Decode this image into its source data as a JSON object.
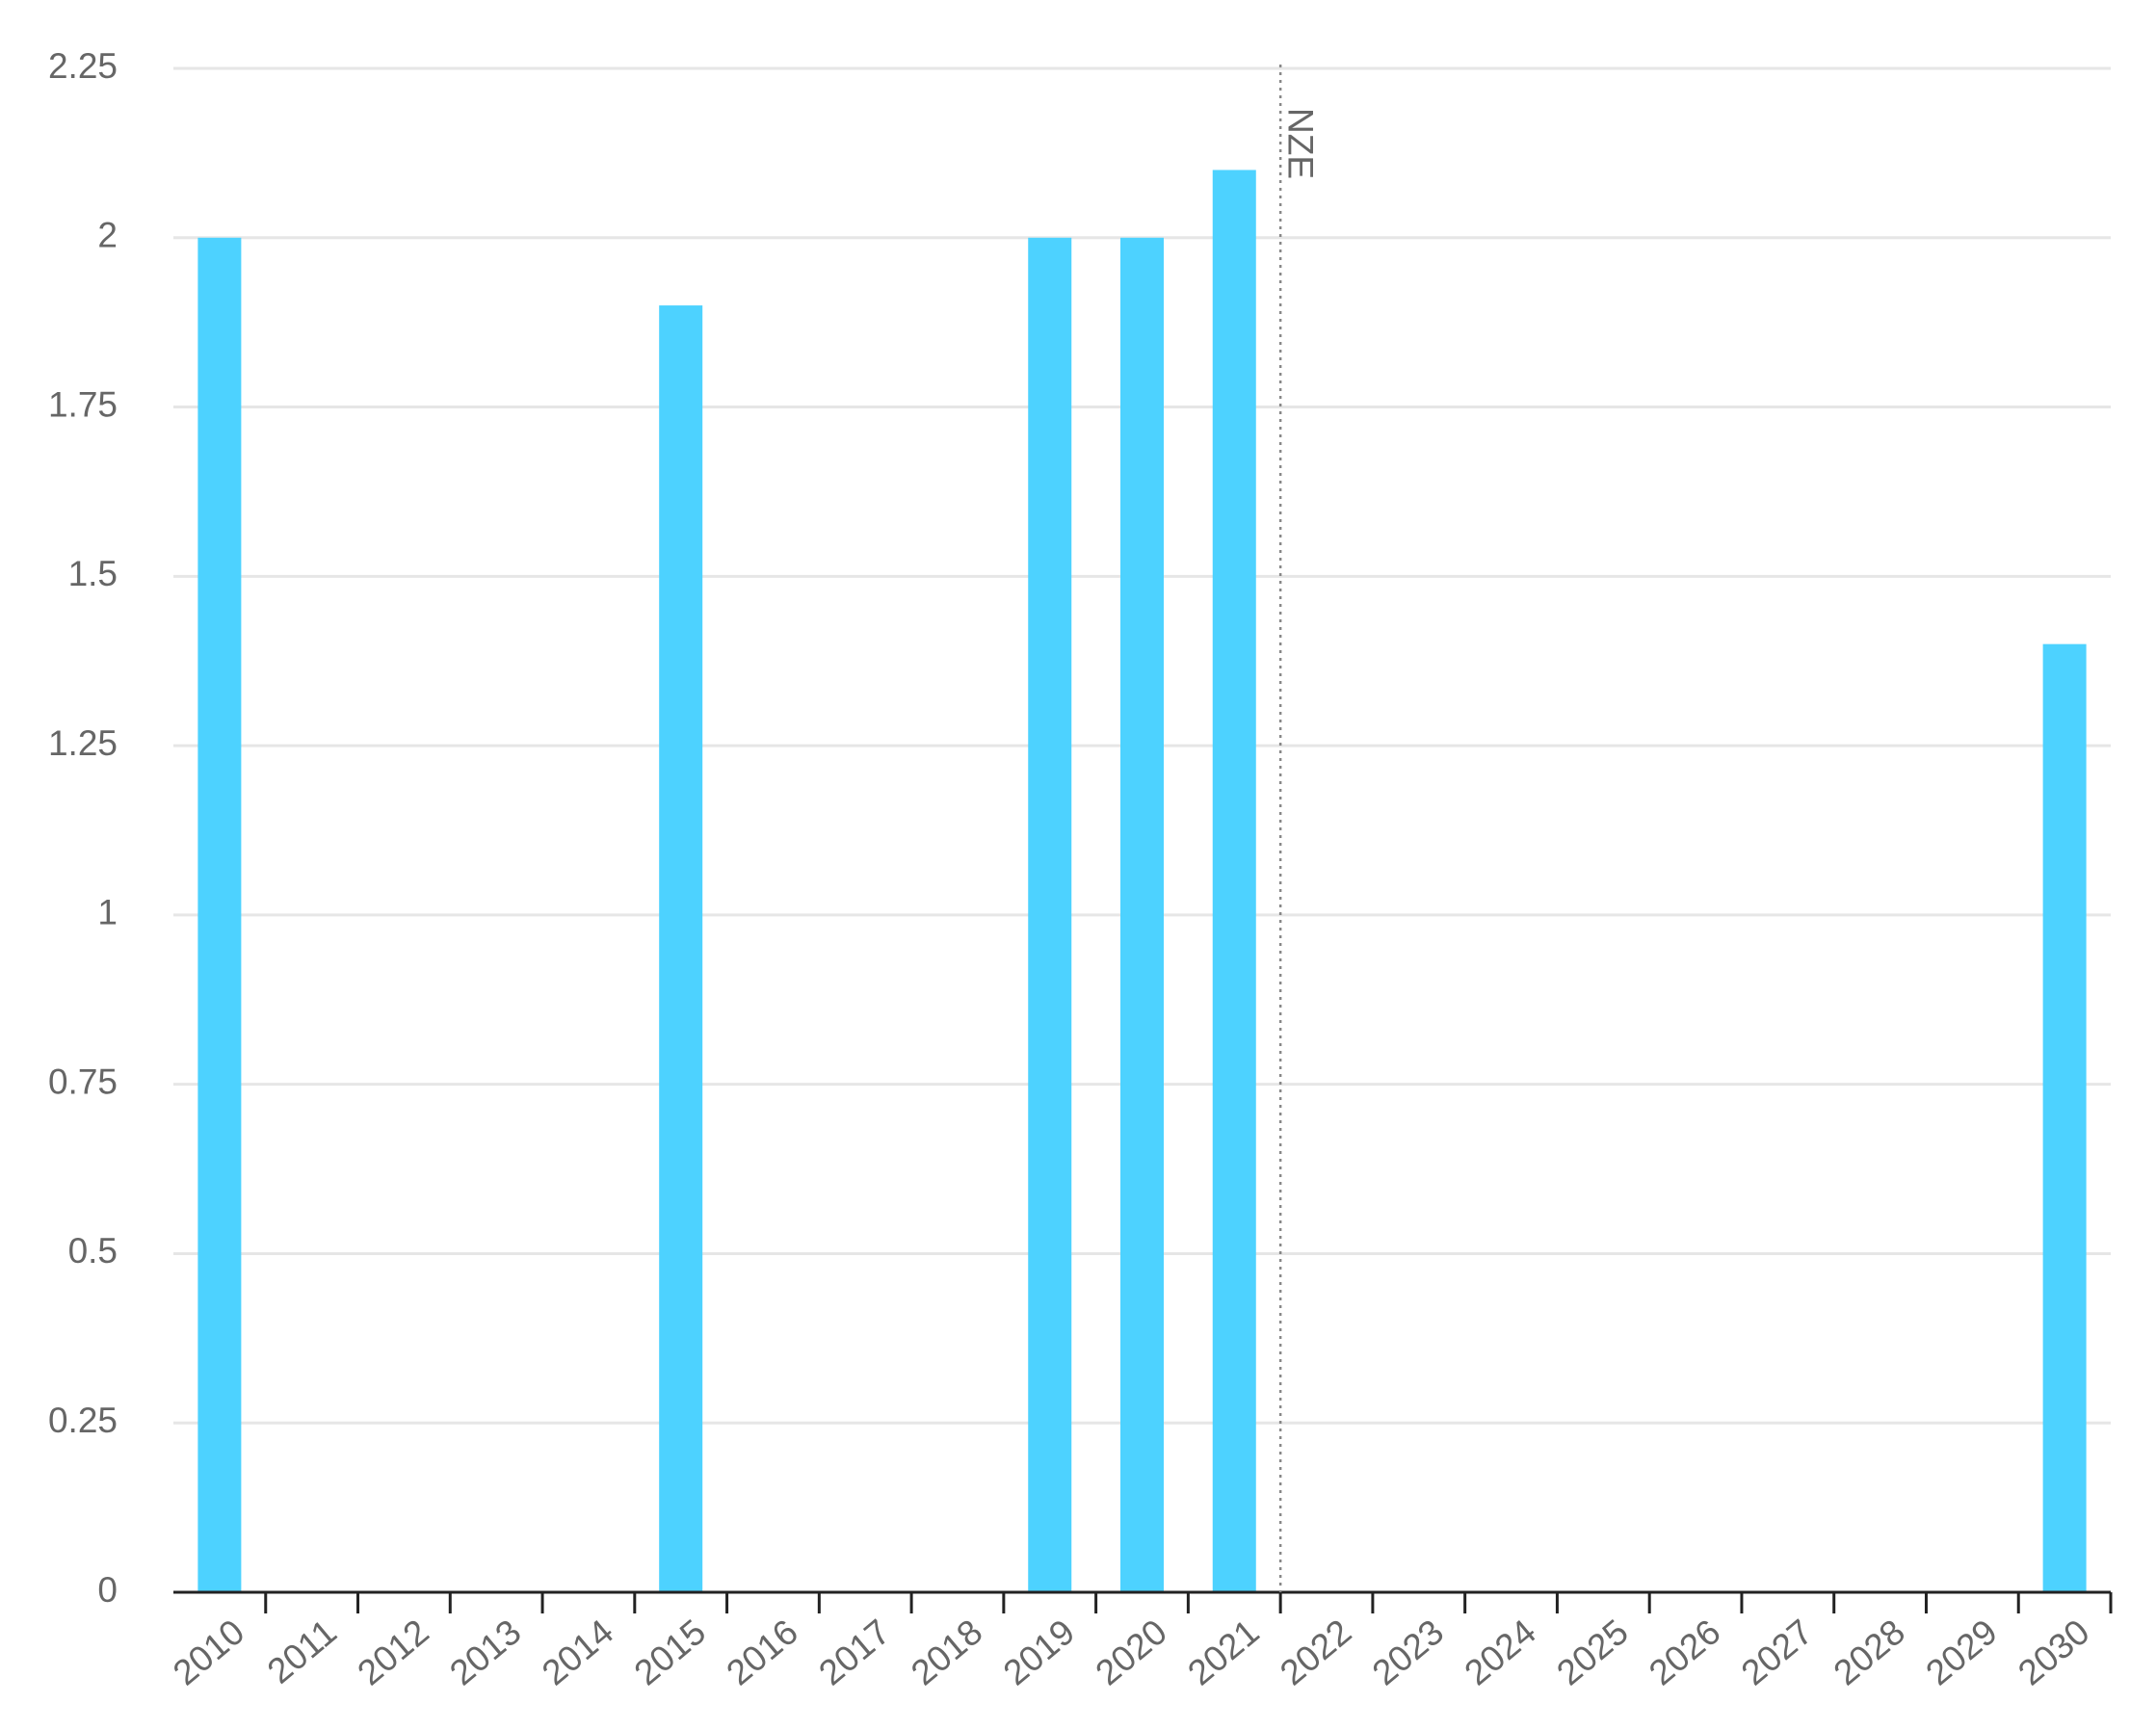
{
  "chart_data": {
    "type": "bar",
    "categories": [
      "2010",
      "2011",
      "2012",
      "2013",
      "2014",
      "2015",
      "2016",
      "2017",
      "2018",
      "2019",
      "2020",
      "2021",
      "2022",
      "2023",
      "2024",
      "2025",
      "2026",
      "2027",
      "2028",
      "2029",
      "2030"
    ],
    "values": [
      2,
      null,
      null,
      null,
      null,
      1.9,
      null,
      null,
      null,
      2,
      2,
      2.1,
      null,
      null,
      null,
      null,
      null,
      null,
      null,
      null,
      1.4
    ],
    "color": "#4dd2ff",
    "ylim": [
      0,
      2.25
    ],
    "yticks": [
      0,
      0.25,
      0.5,
      0.75,
      1,
      1.25,
      1.5,
      1.75,
      2,
      2.25
    ],
    "grid": true,
    "annotation": {
      "text": "NZE",
      "category": "2022"
    }
  }
}
